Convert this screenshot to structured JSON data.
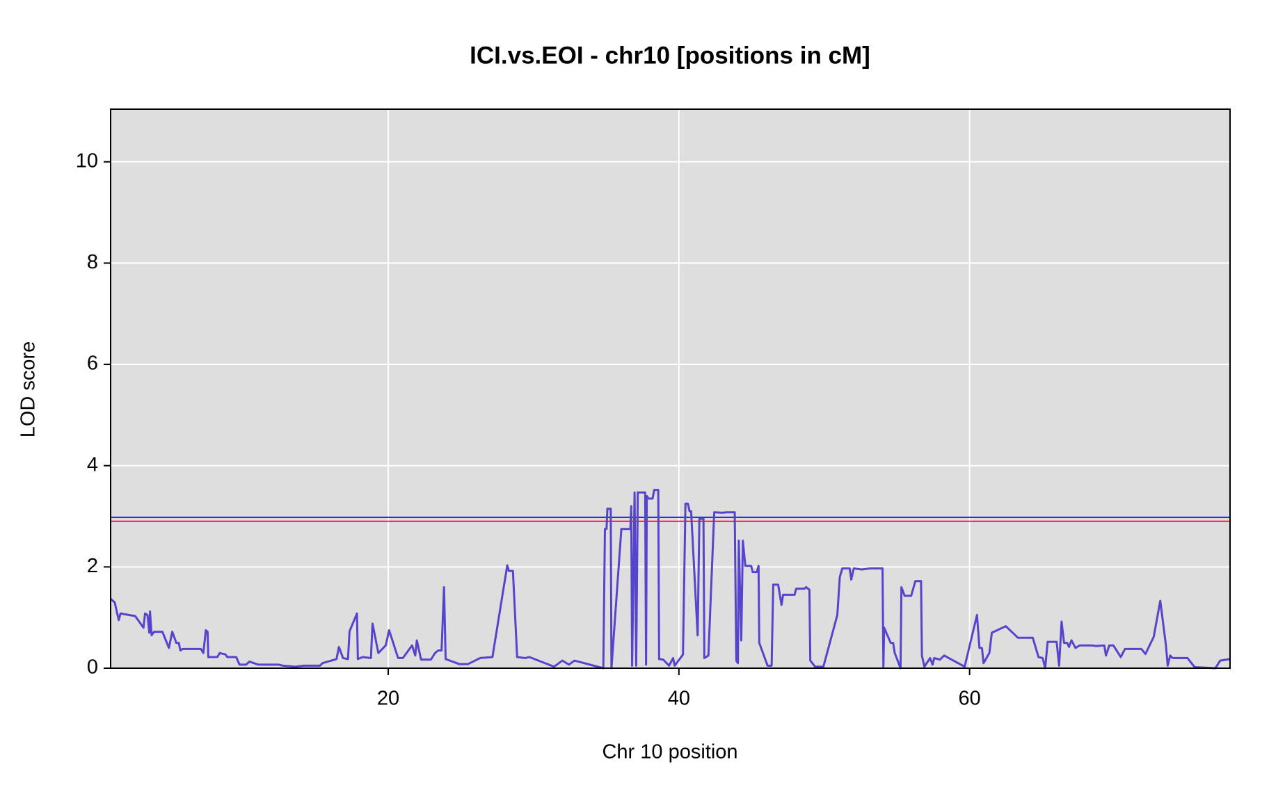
{
  "chart_data": {
    "type": "line",
    "title": "ICI.vs.EOI - chr10 [positions in cM]",
    "x_label": "Chr 10 position",
    "y_label": "LOD score",
    "color": "#5544cc",
    "xlim": [
      0.9,
      77.92
    ],
    "ylim": [
      0,
      11.04
    ],
    "xticks": [
      20,
      40,
      60
    ],
    "yticks": [
      0,
      2,
      4,
      6,
      8,
      10
    ],
    "grid": true,
    "thresholds": [
      {
        "value": 2.98,
        "color": "#2a2aee"
      },
      {
        "value": 2.9,
        "color": "#e0205a"
      }
    ],
    "x": [
      0.9,
      1.18,
      1.46,
      1.58,
      2.59,
      3.16,
      3.27,
      3.44,
      3.56,
      3.61,
      3.72,
      3.89,
      4.46,
      4.91,
      5.14,
      5.42,
      5.59,
      5.7,
      5.87,
      7.11,
      7.28,
      7.45,
      7.57,
      7.62,
      8.24,
      8.41,
      8.81,
      8.92,
      9.54,
      9.77,
      10.22,
      10.45,
      11.07,
      12.48,
      12.76,
      13.61,
      14.18,
      15.31,
      15.48,
      16.44,
      16.61,
      16.89,
      17.23,
      17.34,
      17.85,
      17.91,
      18.24,
      18.81,
      18.92,
      19.32,
      19.83,
      20.06,
      20.68,
      21.01,
      21.64,
      21.86,
      21.97,
      22.26,
      22.94,
      23.22,
      23.44,
      23.67,
      23.84,
      23.95,
      24.91,
      25.48,
      26.32,
      27.17,
      28.19,
      28.3,
      28.58,
      28.87,
      29.43,
      29.71,
      31.41,
      31.98,
      32.43,
      32.82,
      34.8,
      34.91,
      35.02,
      35.08,
      35.31,
      35.36,
      36.04,
      36.66,
      36.72,
      36.78,
      36.95,
      37.06,
      37.17,
      37.68,
      37.74,
      37.79,
      37.91,
      38.19,
      38.3,
      38.58,
      38.64,
      38.92,
      39.32,
      39.6,
      39.71,
      40.28,
      40.45,
      40.62,
      40.73,
      40.84,
      41.29,
      41.41,
      41.69,
      41.75,
      42.03,
      42.43,
      42.99,
      43.27,
      43.84,
      43.95,
      44.06,
      44.12,
      44.29,
      44.4,
      44.57,
      44.97,
      45.08,
      45.36,
      45.48,
      45.53,
      46.1,
      46.38,
      46.49,
      46.83,
      47.06,
      47.17,
      47.96,
      48.07,
      48.64,
      48.75,
      48.98,
      49.04,
      49.37,
      49.94,
      50.9,
      51.07,
      51.24,
      51.75,
      51.86,
      52.03,
      52.59,
      53.16,
      54.01,
      54.07,
      54.12,
      54.57,
      54.74,
      54.85,
      55.25,
      55.31,
      55.53,
      55.98,
      56.27,
      56.66,
      56.72,
      56.89,
      57.28,
      57.45,
      57.57,
      57.96,
      58.25,
      59.66,
      60.51,
      60.68,
      60.85,
      60.96,
      61.36,
      61.53,
      62.49,
      63.33,
      64.35,
      64.74,
      65.03,
      65.2,
      65.37,
      65.99,
      66.16,
      66.33,
      66.5,
      66.72,
      66.84,
      67.01,
      67.29,
      67.57,
      68.42,
      68.71,
      69.27,
      69.38,
      69.61,
      69.89,
      70.4,
      70.69,
      71.82,
      72.1,
      72.67,
      73.12,
      73.51,
      73.63,
      73.8,
      73.97,
      74.99,
      75.49,
      76.91,
      77.24,
      77.92
    ],
    "values": [
      1.37,
      1.3,
      0.95,
      1.08,
      1.03,
      0.8,
      1.08,
      1.05,
      0.7,
      1.12,
      0.65,
      0.72,
      0.72,
      0.4,
      0.72,
      0.5,
      0.5,
      0.35,
      0.38,
      0.38,
      0.3,
      0.75,
      0.72,
      0.22,
      0.22,
      0.3,
      0.27,
      0.22,
      0.22,
      0.07,
      0.07,
      0.13,
      0.07,
      0.07,
      0.05,
      0.03,
      0.05,
      0.05,
      0.1,
      0.18,
      0.42,
      0.2,
      0.18,
      0.73,
      1.08,
      0.18,
      0.22,
      0.2,
      0.88,
      0.3,
      0.45,
      0.75,
      0.2,
      0.2,
      0.45,
      0.25,
      0.55,
      0.17,
      0.17,
      0.3,
      0.35,
      0.35,
      1.6,
      0.18,
      0.08,
      0.08,
      0.2,
      0.22,
      2.03,
      1.92,
      1.92,
      0.22,
      0.2,
      0.22,
      0.03,
      0.15,
      0.07,
      0.15,
      0.0,
      2.75,
      2.75,
      3.15,
      3.15,
      0.0,
      2.75,
      2.75,
      3.2,
      0.05,
      3.47,
      0.05,
      3.47,
      3.47,
      0.07,
      3.4,
      3.35,
      3.35,
      3.52,
      3.52,
      0.18,
      0.17,
      0.05,
      0.2,
      0.05,
      0.27,
      3.25,
      3.25,
      3.1,
      3.1,
      0.65,
      2.95,
      2.95,
      0.2,
      0.25,
      3.08,
      3.07,
      3.08,
      3.08,
      0.15,
      0.1,
      2.52,
      0.55,
      2.52,
      2.02,
      2.02,
      1.9,
      1.9,
      2.02,
      0.5,
      0.05,
      0.05,
      1.65,
      1.65,
      1.25,
      1.45,
      1.45,
      1.57,
      1.57,
      1.6,
      1.55,
      0.15,
      0.03,
      0.03,
      1.05,
      1.8,
      1.97,
      1.97,
      1.75,
      1.97,
      1.95,
      1.97,
      1.97,
      0.03,
      0.8,
      0.5,
      0.5,
      0.3,
      0.0,
      1.6,
      1.43,
      1.43,
      1.72,
      1.72,
      0.25,
      0.03,
      0.2,
      0.07,
      0.2,
      0.17,
      0.25,
      0.03,
      1.05,
      0.4,
      0.4,
      0.1,
      0.3,
      0.7,
      0.83,
      0.6,
      0.6,
      0.22,
      0.2,
      0.0,
      0.52,
      0.52,
      0.05,
      0.92,
      0.5,
      0.5,
      0.42,
      0.55,
      0.4,
      0.45,
      0.45,
      0.44,
      0.45,
      0.25,
      0.45,
      0.45,
      0.22,
      0.38,
      0.38,
      0.28,
      0.62,
      1.33,
      0.45,
      0.05,
      0.25,
      0.2,
      0.2,
      0.02,
      0.0,
      0.15,
      0.18
    ]
  }
}
